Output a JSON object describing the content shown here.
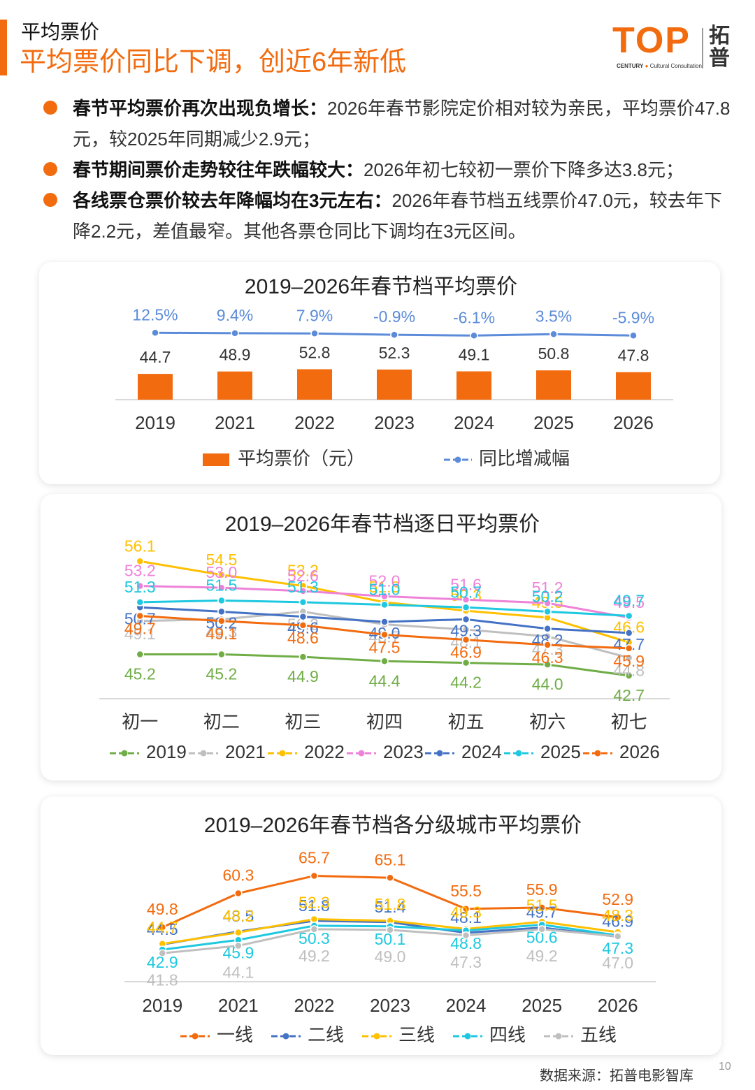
{
  "header": {
    "section": "平均票价",
    "headline": "平均票价同比下调，创近6年新低"
  },
  "logo": {
    "brand": "TOP",
    "tagline_left": "CENTURY",
    "tagline_right": "Cultural Consultation",
    "name": "拓普"
  },
  "bullets": [
    {
      "lead": "春节平均票价再次出现负增长：",
      "text": "2026年春节影院定价相对较为亲民，平均票价47.8元，较2025年同期减少2.9元；"
    },
    {
      "lead": "春节期间票价走势较往年跌幅较大：",
      "text": "2026年初七较初一票价下降多达3.8元；"
    },
    {
      "lead": "各线票仓票价较去年降幅均在3元左右：",
      "text": "2026年春节档五线票价47.0元，较去年下降2.2元，差值最窄。其他各票仓同比下调均在3元区间。"
    }
  ],
  "chart_data": [
    {
      "type": "bar",
      "title": "2019–2026年春节档平均票价",
      "categories": [
        "2019",
        "2021",
        "2022",
        "2023",
        "2024",
        "2025",
        "2026"
      ],
      "series": [
        {
          "name": "平均票价（元）",
          "color": "#f26b0f",
          "values": [
            44.7,
            48.9,
            52.8,
            52.3,
            49.1,
            50.8,
            47.8
          ]
        },
        {
          "name": "同比增减幅",
          "type": "line",
          "axis": "y2",
          "color": "#5b8bd9",
          "values": [
            12.5,
            9.4,
            7.9,
            -0.9,
            -6.1,
            3.5,
            -5.9
          ],
          "value_labels": [
            "12.5%",
            "9.4%",
            "7.9%",
            "-0.9%",
            "-6.1%",
            "3.5%",
            "-5.9%"
          ]
        }
      ],
      "ylim": [
        0,
        160
      ],
      "y2lim": [
        -430,
        180
      ],
      "legend": "bottom"
    },
    {
      "type": "line",
      "title": "2019–2026年春节档逐日平均票价",
      "categories": [
        "初一",
        "初二",
        "初三",
        "初四",
        "初五",
        "初六",
        "初七"
      ],
      "series": [
        {
          "name": "2019",
          "color": "#70ad47",
          "values": [
            45.2,
            45.2,
            44.9,
            44.4,
            44.2,
            44.0,
            42.7
          ],
          "value_labels": [
            "45.2",
            "45.2",
            "44.9",
            "44.4",
            "44.2",
            "44.0",
            "42.7"
          ]
        },
        {
          "name": "2021",
          "color": "#bfbfbf",
          "values": [
            49.1,
            49.3,
            50.2,
            48.7,
            48.1,
            47.3,
            44.8
          ]
        },
        {
          "name": "2022",
          "color": "#ffc000",
          "values": [
            56.1,
            54.5,
            53.2,
            51.3,
            50.3,
            49.5,
            46.6
          ]
        },
        {
          "name": "2023",
          "color": "#ee82d8",
          "values": [
            53.2,
            53.0,
            52.6,
            52.0,
            51.6,
            51.2,
            49.5
          ],
          "value_labels": [
            "53.2",
            "53.0",
            "52.6",
            "52.0",
            "51.6",
            "51.2",
            "49.5"
          ]
        },
        {
          "name": "2024",
          "color": "#4472c4",
          "values": [
            50.7,
            50.2,
            49.6,
            49.0,
            49.3,
            48.2,
            47.7
          ],
          "value_labels": [
            "50.7",
            "50.2",
            "49.6",
            "49.0",
            "49.3",
            "48.2",
            "47.7"
          ]
        },
        {
          "name": "2025",
          "color": "#1ec8e0",
          "values": [
            51.3,
            51.5,
            51.3,
            51.0,
            50.7,
            50.2,
            49.7
          ],
          "value_labels": [
            "51.3",
            "51.5",
            "51.3",
            "51.0",
            "50.7",
            "50.2",
            "49.7"
          ]
        },
        {
          "name": "2026",
          "color": "#f26b0f",
          "values": [
            49.7,
            49.1,
            48.6,
            47.5,
            46.9,
            46.3,
            45.9
          ]
        }
      ],
      "ylim": [
        40,
        58
      ],
      "legend": "bottom"
    },
    {
      "type": "line",
      "title": "2019–2026年春节档各分级城市平均票价",
      "categories": [
        "2019",
        "2021",
        "2022",
        "2023",
        "2024",
        "2025",
        "2026"
      ],
      "series": [
        {
          "name": "一线",
          "color": "#f26b0f",
          "values": [
            49.8,
            60.3,
            65.7,
            65.1,
            55.5,
            55.9,
            52.9
          ]
        },
        {
          "name": "二线",
          "color": "#4472c4",
          "values": [
            44.5,
            48.5,
            51.8,
            51.4,
            48.1,
            49.7,
            46.9
          ]
        },
        {
          "name": "三线",
          "color": "#ffc000",
          "values": [
            44.7,
            48.2,
            52.3,
            51.8,
            49.3,
            51.5,
            48.3
          ]
        },
        {
          "name": "四线",
          "color": "#1ec8e0",
          "values": [
            42.9,
            45.9,
            50.3,
            50.1,
            48.8,
            50.6,
            47.3
          ]
        },
        {
          "name": "五线",
          "color": "#bfbfbf",
          "values": [
            41.8,
            44.1,
            49.2,
            49.0,
            47.3,
            49.2,
            47.0
          ],
          "value_labels": [
            "41.8",
            "44.1",
            "49.2",
            "49.0",
            "47.3",
            "49.2",
            "47.0"
          ]
        }
      ],
      "ylim": [
        33,
        74
      ],
      "legend": "bottom"
    }
  ],
  "footer": {
    "source": "数据来源：拓普电影智库",
    "page": "10"
  }
}
